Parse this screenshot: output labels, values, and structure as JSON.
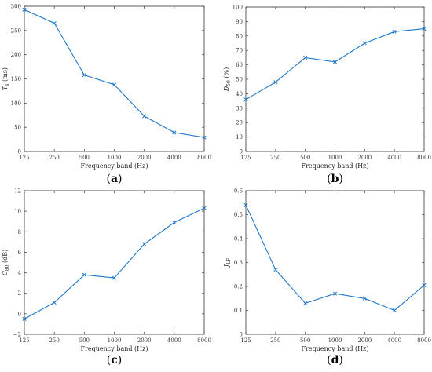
{
  "chart_data": [
    {
      "type": "line",
      "panel_label": "(a)",
      "x_categories": [
        "125",
        "250",
        "500",
        "1000",
        "2000",
        "4000",
        "8000"
      ],
      "series": [
        {
          "values": [
            293,
            265,
            158,
            138,
            73,
            39,
            29
          ]
        }
      ],
      "xlabel": "Frequency band (Hz)",
      "ylabel": "T_s (ms)",
      "ylabel_main": "T",
      "ylabel_sub": "s",
      "ylabel_suffix": " (ms)",
      "ylim": [
        0,
        300
      ],
      "yticks": [
        "0",
        "50",
        "100",
        "150",
        "200",
        "250",
        "300"
      ],
      "color": "#1f77c8",
      "marker": "x"
    },
    {
      "type": "line",
      "panel_label": "(b)",
      "x_categories": [
        "125",
        "250",
        "500",
        "1000",
        "2000",
        "4000",
        "8000"
      ],
      "series": [
        {
          "values": [
            36,
            48,
            65,
            62,
            75,
            83,
            85
          ]
        }
      ],
      "xlabel": "Frequency band (Hz)",
      "ylabel": "D_50 (%)",
      "ylabel_main": "D",
      "ylabel_sub": "50",
      "ylabel_suffix": " (%)",
      "ylim": [
        0,
        100
      ],
      "yticks": [
        "0",
        "10",
        "20",
        "30",
        "40",
        "50",
        "60",
        "70",
        "80",
        "90",
        "100"
      ],
      "color": "#1f77c8",
      "marker": "x"
    },
    {
      "type": "line",
      "panel_label": "(c)",
      "x_categories": [
        "125",
        "250",
        "500",
        "1000",
        "2000",
        "4000",
        "8000"
      ],
      "series": [
        {
          "values": [
            -0.5,
            1.1,
            3.8,
            3.5,
            6.8,
            8.9,
            10.3
          ]
        }
      ],
      "xlabel": "Frequency band (Hz)",
      "ylabel": "C_80 (dB)",
      "ylabel_main": "C",
      "ylabel_sub": "80",
      "ylabel_suffix": " (dB)",
      "ylim": [
        -2,
        12
      ],
      "yticks": [
        "−2",
        "0",
        "2",
        "4",
        "6",
        "8",
        "10",
        "12"
      ],
      "color": "#1f77c8",
      "marker": "x"
    },
    {
      "type": "line",
      "panel_label": "(d)",
      "x_categories": [
        "125",
        "250",
        "500",
        "1000",
        "2000",
        "4000",
        "8000"
      ],
      "series": [
        {
          "values": [
            0.54,
            0.27,
            0.13,
            0.17,
            0.15,
            0.1,
            0.205
          ]
        }
      ],
      "xlabel": "Frequency band (Hz)",
      "ylabel": "J_LF",
      "ylabel_main": "J",
      "ylabel_sub": "LF",
      "ylabel_suffix": "",
      "ylim": [
        0,
        0.6
      ],
      "yticks": [
        "0",
        "0.1",
        "0.2",
        "0.3",
        "0.4",
        "0.5",
        "0.6"
      ],
      "color": "#1f77c8",
      "marker": "x"
    }
  ]
}
